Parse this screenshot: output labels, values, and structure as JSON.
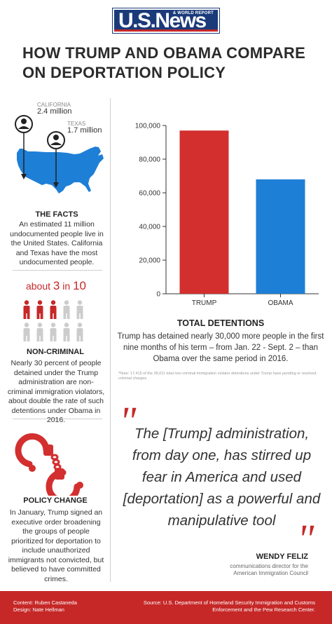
{
  "logo": {
    "brand": "U.S.News",
    "tagline": "& WORLD REPORT"
  },
  "title": "HOW TRUMP AND OBAMA COMPARE ON DEPORTATION POLICY",
  "facts": {
    "california_label": "CALIFORNIA",
    "california_value": "2.4 million",
    "texas_label": "TEXAS",
    "texas_value": "1.7 million",
    "heading": "THE FACTS",
    "body": "An estimated 11 million undocumented people live in the United States. California and Texas have the most undocumented people."
  },
  "noncriminal": {
    "about_prefix": "about ",
    "about_num": "3",
    "about_mid": " in ",
    "about_den": "10",
    "highlighted": 3,
    "total": 10,
    "highlight_color": "#c62828",
    "muted_color": "#cccccc",
    "heading": "NON-CRIMINAL",
    "body": "Nearly 30 percent of people detained under the Trump administration are non-criminal immigration violators, about double the rate of such detentions under Obama in 2016."
  },
  "policy": {
    "icon": "handcuffs-icon",
    "heading": "POLICY CHANGE",
    "body": "In January, Trump signed an executive order broadening the groups of people prioritized for deportation to include unauthorized immigrants not convicted, but believed to have committed crimes."
  },
  "chart_data": {
    "type": "bar",
    "categories": [
      "TRUMP",
      "OBAMA"
    ],
    "values": [
      97000,
      68000
    ],
    "colors": [
      "#d32f2f",
      "#1e7fd6"
    ],
    "ylim": [
      0,
      100000
    ],
    "yticks": [
      "0",
      "20,000",
      "40,000",
      "60,000",
      "80,000",
      "100,000"
    ],
    "ytick_values": [
      0,
      20000,
      40000,
      60000,
      80000,
      100000
    ],
    "title": "TOTAL DETENTIONS",
    "xlabel": "",
    "ylabel": "",
    "grid": false
  },
  "chart_text": {
    "description": "Trump has detained nearly 30,000 more people in the first nine months of his term – from Jan. 22 - Sept. 2 – than Obama over the same period in 2016.",
    "note": "*Note: 17,415 of the 28,011 total non-criminal immigration violator detentions under Trump have pending or resolved criminal charges."
  },
  "quote": {
    "open_mark": "\"",
    "close_mark": "\"",
    "text": "The [Trump] administration, from day one, has stirred up fear in America and used [deportation] as a powerful and manipulative tool",
    "name": "WENDY FELIZ",
    "role": "communications director for the American Immigration Council"
  },
  "footer": {
    "content_credit": "Content: Ruben Castaneda",
    "design_credit": "Design: Nate Hellman",
    "source": "Source: U.S. Department of Homeland Security Immigration and Customs Enforcement and the Pew Research Center."
  }
}
